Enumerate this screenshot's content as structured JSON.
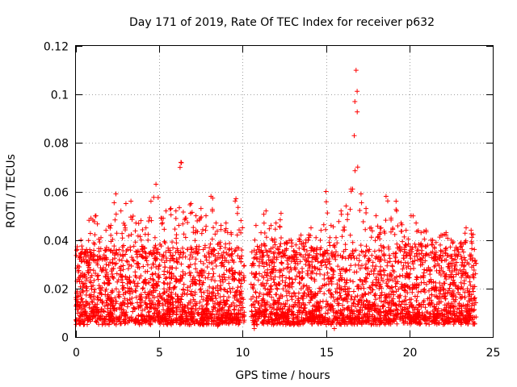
{
  "chart_data": {
    "type": "scatter",
    "title": "Day 171 of 2019, Rate Of TEC Index for receiver p632",
    "xlabel": "GPS time / hours",
    "ylabel": "ROTI / TECUs",
    "xlim": [
      0,
      25
    ],
    "ylim": [
      0,
      0.12
    ],
    "xticks": [
      0,
      5,
      10,
      15,
      20,
      25
    ],
    "yticks": [
      0,
      0.02,
      0.04,
      0.06,
      0.08,
      0.1,
      0.12
    ],
    "xtick_labels": [
      "0",
      "5",
      "10",
      "15",
      "20",
      "25"
    ],
    "ytick_labels": [
      "0",
      "0.02",
      "0.04",
      "0.06",
      "0.08",
      "0.1",
      "0.12"
    ],
    "grid": true,
    "marker": "+",
    "color": "#ff0000",
    "data_gap_hours": [
      10.1,
      10.5
    ],
    "x_range": [
      0,
      24
    ],
    "typical_range": [
      0.005,
      0.04
    ],
    "peak_bins": [
      {
        "x": 0.3,
        "y": 0.04
      },
      {
        "x": 0.6,
        "y": 0.035
      },
      {
        "x": 0.9,
        "y": 0.049
      },
      {
        "x": 1.2,
        "y": 0.05
      },
      {
        "x": 1.5,
        "y": 0.041
      },
      {
        "x": 1.8,
        "y": 0.044
      },
      {
        "x": 2.1,
        "y": 0.046
      },
      {
        "x": 2.4,
        "y": 0.059
      },
      {
        "x": 2.7,
        "y": 0.052
      },
      {
        "x": 3.0,
        "y": 0.055
      },
      {
        "x": 3.3,
        "y": 0.056
      },
      {
        "x": 3.6,
        "y": 0.047
      },
      {
        "x": 3.9,
        "y": 0.048
      },
      {
        "x": 4.2,
        "y": 0.045
      },
      {
        "x": 4.5,
        "y": 0.056
      },
      {
        "x": 4.8,
        "y": 0.063
      },
      {
        "x": 5.1,
        "y": 0.049
      },
      {
        "x": 5.4,
        "y": 0.052
      },
      {
        "x": 5.7,
        "y": 0.053
      },
      {
        "x": 6.0,
        "y": 0.052
      },
      {
        "x": 6.3,
        "y": 0.072
      },
      {
        "x": 6.6,
        "y": 0.049
      },
      {
        "x": 6.9,
        "y": 0.055
      },
      {
        "x": 7.2,
        "y": 0.05
      },
      {
        "x": 7.5,
        "y": 0.053
      },
      {
        "x": 7.8,
        "y": 0.05
      },
      {
        "x": 8.1,
        "y": 0.058
      },
      {
        "x": 8.4,
        "y": 0.047
      },
      {
        "x": 8.7,
        "y": 0.046
      },
      {
        "x": 9.0,
        "y": 0.047
      },
      {
        "x": 9.3,
        "y": 0.043
      },
      {
        "x": 9.6,
        "y": 0.057
      },
      {
        "x": 9.9,
        "y": 0.048
      },
      {
        "x": 10.8,
        "y": 0.046
      },
      {
        "x": 11.1,
        "y": 0.043
      },
      {
        "x": 11.4,
        "y": 0.052
      },
      {
        "x": 11.7,
        "y": 0.046
      },
      {
        "x": 12.0,
        "y": 0.047
      },
      {
        "x": 12.3,
        "y": 0.051
      },
      {
        "x": 12.6,
        "y": 0.039
      },
      {
        "x": 12.9,
        "y": 0.04
      },
      {
        "x": 13.2,
        "y": 0.038
      },
      {
        "x": 13.5,
        "y": 0.042
      },
      {
        "x": 13.8,
        "y": 0.04
      },
      {
        "x": 14.1,
        "y": 0.045
      },
      {
        "x": 14.4,
        "y": 0.041
      },
      {
        "x": 14.7,
        "y": 0.044
      },
      {
        "x": 15.0,
        "y": 0.06
      },
      {
        "x": 15.3,
        "y": 0.046
      },
      {
        "x": 15.6,
        "y": 0.041
      },
      {
        "x": 15.9,
        "y": 0.052
      },
      {
        "x": 16.2,
        "y": 0.054
      },
      {
        "x": 16.5,
        "y": 0.061
      },
      {
        "x": 16.8,
        "y": 0.11
      },
      {
        "x": 17.1,
        "y": 0.059
      },
      {
        "x": 17.4,
        "y": 0.053
      },
      {
        "x": 17.7,
        "y": 0.045
      },
      {
        "x": 18.0,
        "y": 0.05
      },
      {
        "x": 18.3,
        "y": 0.045
      },
      {
        "x": 18.6,
        "y": 0.058
      },
      {
        "x": 18.9,
        "y": 0.049
      },
      {
        "x": 19.2,
        "y": 0.056
      },
      {
        "x": 19.5,
        "y": 0.047
      },
      {
        "x": 19.8,
        "y": 0.044
      },
      {
        "x": 20.1,
        "y": 0.05
      },
      {
        "x": 20.4,
        "y": 0.047
      },
      {
        "x": 20.7,
        "y": 0.043
      },
      {
        "x": 21.0,
        "y": 0.044
      },
      {
        "x": 21.3,
        "y": 0.04
      },
      {
        "x": 21.6,
        "y": 0.039
      },
      {
        "x": 21.9,
        "y": 0.042
      },
      {
        "x": 22.2,
        "y": 0.043
      },
      {
        "x": 22.5,
        "y": 0.04
      },
      {
        "x": 22.8,
        "y": 0.037
      },
      {
        "x": 23.1,
        "y": 0.039
      },
      {
        "x": 23.4,
        "y": 0.045
      },
      {
        "x": 23.7,
        "y": 0.044
      }
    ],
    "low_outliers": [
      {
        "x": 10.7,
        "y": 0.0035
      },
      {
        "x": 15.5,
        "y": 0.0035
      },
      {
        "x": 8.5,
        "y": 0.0045
      }
    ]
  }
}
